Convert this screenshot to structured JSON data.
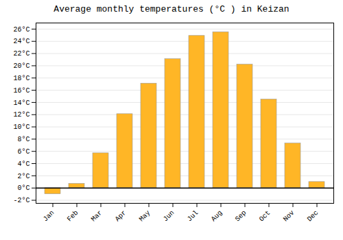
{
  "chart_data": {
    "type": "bar",
    "title": "Average monthly temperatures (°C ) in Keizan",
    "categories": [
      "Jan",
      "Feb",
      "Mar",
      "Apr",
      "May",
      "Jun",
      "Jul",
      "Aug",
      "Sep",
      "Oct",
      "Nov",
      "Dec"
    ],
    "values": [
      -1.0,
      0.7,
      5.7,
      12.1,
      17.1,
      21.1,
      24.9,
      25.5,
      20.2,
      14.5,
      7.3,
      1.0
    ],
    "color": "#FFB626",
    "ylim": [
      -2.5,
      27
    ],
    "yticks": [
      {
        "value": -2,
        "label": "-2°C"
      },
      {
        "value": 0,
        "label": "0°C"
      },
      {
        "value": 2,
        "label": "2°C"
      },
      {
        "value": 4,
        "label": "4°C"
      },
      {
        "value": 6,
        "label": "6°C"
      },
      {
        "value": 8,
        "label": "8°C"
      },
      {
        "value": 10,
        "label": "10°C"
      },
      {
        "value": 12,
        "label": "12°C"
      },
      {
        "value": 14,
        "label": "14°C"
      },
      {
        "value": 16,
        "label": "16°C"
      },
      {
        "value": 18,
        "label": "18°C"
      },
      {
        "value": 20,
        "label": "20°C"
      },
      {
        "value": 22,
        "label": "22°C"
      },
      {
        "value": 24,
        "label": "24°C"
      },
      {
        "value": 26,
        "label": "26°C"
      }
    ],
    "grid": true
  }
}
